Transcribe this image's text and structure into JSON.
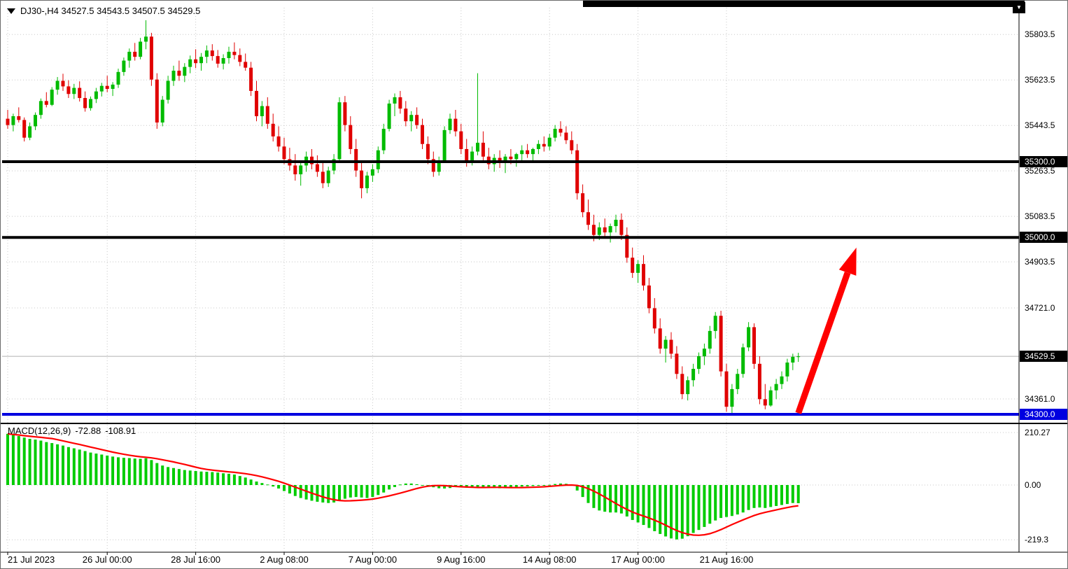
{
  "window": {
    "title_text": "DJ30-,H4 34527.5 34543.5 34507.5 34529.5",
    "corner_button_glyph": "▼"
  },
  "chart_data": {
    "type": "candlestick",
    "title": "DJ30-,H4",
    "symbol": "DJ30-",
    "timeframe": "H4",
    "ohlc_display": {
      "open": 34527.5,
      "high": 34543.5,
      "low": 34507.5,
      "close": 34529.5
    },
    "grid": true,
    "visible_price_range": [
      34275,
      35937
    ],
    "colors": {
      "up": "#00BB00",
      "down": "#E00000",
      "grid": "#c8c8c8"
    },
    "price_axis": {
      "ticks": [
        {
          "label": "35803.5",
          "price": 35803.5
        },
        {
          "label": "35623.5",
          "price": 35623.5
        },
        {
          "label": "35443.5",
          "price": 35443.5
        },
        {
          "label": "35263.5",
          "price": 35263.5
        },
        {
          "label": "35083.5",
          "price": 35083.5
        },
        {
          "label": "34903.5",
          "price": 34903.5
        },
        {
          "label": "34721.0",
          "price": 34721.0
        },
        {
          "label": "34361.0",
          "price": 34361.0
        }
      ],
      "badges": [
        {
          "label": "35300.0",
          "price": 35300.0,
          "bg": "#000000",
          "fg": "#ffffff"
        },
        {
          "label": "35000.0",
          "price": 35000.0,
          "bg": "#000000",
          "fg": "#ffffff"
        },
        {
          "label": "34529.5",
          "price": 34529.5,
          "bg": "#000000",
          "fg": "#ffffff"
        },
        {
          "label": "34300.0",
          "price": 34300.0,
          "bg": "#0000E0",
          "fg": "#ffffff"
        }
      ]
    },
    "time_axis": {
      "ticks": [
        {
          "label": "21 Jul 2023",
          "index": 0
        },
        {
          "label": "26 Jul 00:00",
          "index": 18
        },
        {
          "label": "28 Jul 16:00",
          "index": 34
        },
        {
          "label": "2 Aug 08:00",
          "index": 50
        },
        {
          "label": "7 Aug 00:00",
          "index": 66
        },
        {
          "label": "9 Aug 16:00",
          "index": 82
        },
        {
          "label": "14 Aug 08:00",
          "index": 98
        },
        {
          "label": "17 Aug 00:00",
          "index": 114
        },
        {
          "label": "21 Aug 16:00",
          "index": 130
        }
      ]
    },
    "levels": [
      {
        "price": 35300.0,
        "color": "#000000",
        "thickness": 4
      },
      {
        "price": 35000.0,
        "color": "#000000",
        "thickness": 4
      },
      {
        "price": 34300.0,
        "color": "#0000E0",
        "thickness": 4
      }
    ],
    "current_price": {
      "price": 34529.5,
      "line_color": "#b0b0b0"
    },
    "arrow": {
      "from": {
        "index": 143,
        "price": 34305
      },
      "to": {
        "index": 153.5,
        "price": 34960
      },
      "color": "#FF0000"
    },
    "candles": [
      [
        35470,
        35505,
        35430,
        35445
      ],
      [
        35445,
        35490,
        35420,
        35480
      ],
      [
        35480,
        35515,
        35455,
        35465
      ],
      [
        35465,
        35475,
        35380,
        35395
      ],
      [
        35395,
        35455,
        35385,
        35440
      ],
      [
        35440,
        35495,
        35425,
        35485
      ],
      [
        35485,
        35550,
        35470,
        35540
      ],
      [
        35540,
        35575,
        35515,
        35525
      ],
      [
        35525,
        35595,
        35520,
        35585
      ],
      [
        35585,
        35635,
        35565,
        35620
      ],
      [
        35620,
        35648,
        35580,
        35598
      ],
      [
        35598,
        35622,
        35552,
        35568
      ],
      [
        35568,
        35608,
        35548,
        35592
      ],
      [
        35592,
        35618,
        35538,
        35552
      ],
      [
        35552,
        35578,
        35498,
        35512
      ],
      [
        35512,
        35558,
        35502,
        35548
      ],
      [
        35548,
        35592,
        35532,
        35578
      ],
      [
        35578,
        35612,
        35558,
        35600
      ],
      [
        35600,
        35640,
        35575,
        35588
      ],
      [
        35588,
        35615,
        35560,
        35605
      ],
      [
        35605,
        35668,
        35592,
        35655
      ],
      [
        35655,
        35712,
        35640,
        35700
      ],
      [
        35700,
        35748,
        35672,
        35735
      ],
      [
        35735,
        35770,
        35700,
        35715
      ],
      [
        35715,
        35790,
        35705,
        35775
      ],
      [
        35775,
        35860,
        35745,
        35795
      ],
      [
        35795,
        35810,
        35600,
        35625
      ],
      [
        35625,
        35650,
        35430,
        35455
      ],
      [
        35455,
        35560,
        35440,
        35545
      ],
      [
        35545,
        35640,
        35530,
        35620
      ],
      [
        35620,
        35680,
        35600,
        35660
      ],
      [
        35660,
        35700,
        35620,
        35640
      ],
      [
        35640,
        35690,
        35615,
        35675
      ],
      [
        35675,
        35720,
        35650,
        35705
      ],
      [
        35705,
        35745,
        35670,
        35690
      ],
      [
        35690,
        35730,
        35660,
        35715
      ],
      [
        35715,
        35760,
        35690,
        35740
      ],
      [
        35740,
        35765,
        35700,
        35718
      ],
      [
        35718,
        35742,
        35672,
        35688
      ],
      [
        35688,
        35725,
        35665,
        35710
      ],
      [
        35710,
        35755,
        35688,
        35735
      ],
      [
        35735,
        35772,
        35705,
        35722
      ],
      [
        35722,
        35748,
        35678,
        35695
      ],
      [
        35695,
        35728,
        35660,
        35672
      ],
      [
        35672,
        35695,
        35560,
        35580
      ],
      [
        35580,
        35620,
        35460,
        35480
      ],
      [
        35480,
        35540,
        35440,
        35520
      ],
      [
        35520,
        35555,
        35430,
        35450
      ],
      [
        35450,
        35490,
        35380,
        35400
      ],
      [
        35400,
        35440,
        35340,
        35360
      ],
      [
        35360,
        35395,
        35290,
        35310
      ],
      [
        35310,
        35355,
        35265,
        35285
      ],
      [
        35285,
        35330,
        35225,
        35250
      ],
      [
        35250,
        35300,
        35205,
        35285
      ],
      [
        35285,
        35340,
        35260,
        35320
      ],
      [
        35320,
        35350,
        35270,
        35290
      ],
      [
        35290,
        35325,
        35240,
        35260
      ],
      [
        35260,
        35300,
        35195,
        35215
      ],
      [
        35215,
        35280,
        35200,
        35265
      ],
      [
        35265,
        35330,
        35250,
        35310
      ],
      [
        35310,
        35555,
        35295,
        35535
      ],
      [
        35535,
        35560,
        35420,
        35445
      ],
      [
        35445,
        35480,
        35330,
        35350
      ],
      [
        35350,
        35390,
        35240,
        35265
      ],
      [
        35265,
        35300,
        35155,
        35195
      ],
      [
        35195,
        35260,
        35175,
        35245
      ],
      [
        35245,
        35290,
        35220,
        35270
      ],
      [
        35270,
        35360,
        35255,
        35345
      ],
      [
        35345,
        35450,
        35330,
        35430
      ],
      [
        35430,
        35545,
        35420,
        35530
      ],
      [
        35530,
        35570,
        35480,
        35555
      ],
      [
        35555,
        35580,
        35490,
        35510
      ],
      [
        35510,
        35540,
        35440,
        35460
      ],
      [
        35460,
        35500,
        35420,
        35485
      ],
      [
        35485,
        35515,
        35430,
        35445
      ],
      [
        35445,
        35470,
        35350,
        35370
      ],
      [
        35370,
        35400,
        35290,
        35310
      ],
      [
        35310,
        35340,
        35240,
        35260
      ],
      [
        35260,
        35320,
        35245,
        35305
      ],
      [
        35305,
        35440,
        35295,
        35425
      ],
      [
        35425,
        35490,
        35410,
        35470
      ],
      [
        35470,
        35505,
        35400,
        35420
      ],
      [
        35420,
        35450,
        35330,
        35350
      ],
      [
        35350,
        35390,
        35280,
        35300
      ],
      [
        35300,
        35360,
        35285,
        35340
      ],
      [
        35340,
        35650,
        35325,
        35375
      ],
      [
        35375,
        35420,
        35300,
        35320
      ],
      [
        35320,
        35355,
        35270,
        35290
      ],
      [
        35290,
        35330,
        35260,
        35315
      ],
      [
        35315,
        35345,
        35275,
        35295
      ],
      [
        35295,
        35330,
        35255,
        35320
      ],
      [
        35320,
        35350,
        35290,
        35310
      ],
      [
        35310,
        35335,
        35280,
        35330
      ],
      [
        35330,
        35365,
        35305,
        35345
      ],
      [
        35345,
        35370,
        35315,
        35330
      ],
      [
        35330,
        35355,
        35300,
        35350
      ],
      [
        35350,
        35385,
        35330,
        35370
      ],
      [
        35370,
        35400,
        35340,
        35360
      ],
      [
        35360,
        35410,
        35345,
        35395
      ],
      [
        35395,
        35445,
        35380,
        35430
      ],
      [
        35430,
        35460,
        35400,
        35415
      ],
      [
        35415,
        35440,
        35370,
        35385
      ],
      [
        35385,
        35420,
        35330,
        35345
      ],
      [
        35345,
        35370,
        35150,
        35175
      ],
      [
        35175,
        35210,
        35080,
        35100
      ],
      [
        35100,
        35150,
        35030,
        35050
      ],
      [
        35050,
        35090,
        34985,
        35010
      ],
      [
        35010,
        35060,
        34990,
        35040
      ],
      [
        35040,
        35075,
        35005,
        35020
      ],
      [
        35020,
        35055,
        34980,
        35045
      ],
      [
        35045,
        35090,
        35020,
        35070
      ],
      [
        35070,
        35095,
        34990,
        35010
      ],
      [
        35010,
        35040,
        34900,
        34920
      ],
      [
        34920,
        34960,
        34840,
        34860
      ],
      [
        34860,
        34910,
        34820,
        34895
      ],
      [
        34895,
        34930,
        34790,
        34810
      ],
      [
        34810,
        34840,
        34700,
        34720
      ],
      [
        34720,
        34760,
        34620,
        34640
      ],
      [
        34640,
        34680,
        34540,
        34560
      ],
      [
        34560,
        34610,
        34505,
        34595
      ],
      [
        34595,
        34625,
        34520,
        34540
      ],
      [
        34540,
        34570,
        34440,
        34460
      ],
      [
        34460,
        34490,
        34360,
        34380
      ],
      [
        34380,
        34450,
        34355,
        34435
      ],
      [
        34435,
        34500,
        34410,
        34480
      ],
      [
        34480,
        34545,
        34460,
        34530
      ],
      [
        34530,
        34580,
        34495,
        34560
      ],
      [
        34560,
        34650,
        34540,
        34630
      ],
      [
        34630,
        34705,
        34600,
        34690
      ],
      [
        34690,
        34710,
        34450,
        34470
      ],
      [
        34470,
        34500,
        34310,
        34330
      ],
      [
        34330,
        34420,
        34305,
        34400
      ],
      [
        34400,
        34480,
        34380,
        34460
      ],
      [
        34460,
        34580,
        34445,
        34565
      ],
      [
        34565,
        34665,
        34550,
        34645
      ],
      [
        34645,
        34660,
        34480,
        34500
      ],
      [
        34500,
        34530,
        34340,
        34360
      ],
      [
        34360,
        34420,
        34320,
        34335
      ],
      [
        34335,
        34410,
        34330,
        34395
      ],
      [
        34395,
        34440,
        34360,
        34420
      ],
      [
        34420,
        34470,
        34400,
        34450
      ],
      [
        34450,
        34520,
        34430,
        34505
      ],
      [
        34505,
        34540,
        34475,
        34527.5
      ],
      [
        34527.5,
        34543.5,
        34507.5,
        34529.5
      ]
    ],
    "macd": {
      "name": "MACD(12,26,9)",
      "value": "-72.88",
      "signal_value": "-108.91",
      "axis": [
        {
          "label": "210.27",
          "value": 210.27
        },
        {
          "label": "0.00",
          "value": 0
        },
        {
          "label": "-219.3",
          "value": -219.3
        }
      ],
      "signal_sma_period": 9,
      "hist_color": "#00CC00",
      "signal_color": "#FF0000",
      "histogram": [
        205,
        200,
        196,
        190,
        185,
        182,
        178,
        172,
        168,
        163,
        158,
        152,
        147,
        142,
        136,
        130,
        126,
        122,
        118,
        114,
        111,
        109,
        108,
        106,
        105,
        107,
        100,
        88,
        78,
        72,
        68,
        64,
        60,
        58,
        56,
        54,
        53,
        52,
        50,
        47,
        45,
        42,
        36,
        30,
        22,
        14,
        8,
        2,
        -6,
        -14,
        -24,
        -34,
        -44,
        -52,
        -58,
        -63,
        -67,
        -70,
        -72,
        -70,
        -62,
        -55,
        -50,
        -48,
        -50,
        -52,
        -48,
        -40,
        -30,
        -18,
        -8,
        2,
        6,
        6,
        3,
        0,
        -4,
        -9,
        -13,
        -14,
        -12,
        -8,
        -6,
        -7,
        -9,
        -10,
        -9,
        -10,
        -12,
        -13,
        -12,
        -10,
        -8,
        -6,
        -5,
        -4,
        -3,
        -1,
        1,
        4,
        6,
        5,
        -2,
        -22,
        -48,
        -72,
        -92,
        -102,
        -107,
        -110,
        -110,
        -114,
        -126,
        -140,
        -150,
        -160,
        -172,
        -185,
        -196,
        -206,
        -214,
        -218,
        -215,
        -205,
        -192,
        -180,
        -168,
        -155,
        -142,
        -132,
        -128,
        -124,
        -118,
        -110,
        -100,
        -92,
        -90,
        -92,
        -88,
        -84,
        -80,
        -76,
        -72,
        -72.88
      ]
    }
  }
}
